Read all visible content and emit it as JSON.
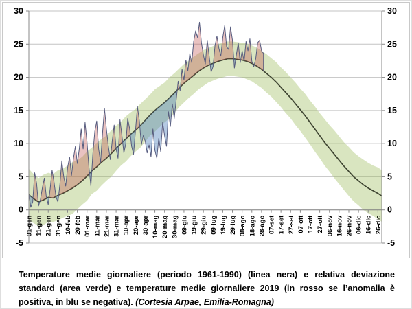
{
  "caption": {
    "main": "Temperature medie giornaliere (periodo 1961-1990) (linea nera) e relativa deviazione standard (area verde) e temperature medie giornaliere 2019 (in rosso se l’anomalia è positiva, in blu se negativa). ",
    "credit": "(Cortesia Arpae, Emilia-Romagna)"
  },
  "chart_data": {
    "type": "line",
    "title": "",
    "xlabel": "",
    "ylabel": "",
    "ylim": [
      -5,
      30
    ],
    "y_tick_step": 5,
    "y_axis_sides": [
      "left",
      "right"
    ],
    "x_axis_crosses_at": 0,
    "days_in_year": 365,
    "grid": {
      "show": true,
      "color": "#c3c3c3",
      "axis_color": "#8a8a8a",
      "zero_axis_color": "#7f7f7f"
    },
    "x_tick_first_day": 1,
    "x_tick_interval_days": 10,
    "x_tick_labels": [
      "01-gen",
      "11-gen",
      "21-gen",
      "31-gen",
      "10-feb",
      "20-feb",
      "01-mar",
      "11-mar",
      "21-mar",
      "31-mar",
      "10-apr",
      "20-apr",
      "30-apr",
      "10-mag",
      "20-mag",
      "30-mag",
      "09-giu",
      "19-giu",
      "29-giu",
      "09-lug",
      "19-lug",
      "29-lug",
      "08-ago",
      "18-ago",
      "28-ago",
      "07-set",
      "17-set",
      "27-set",
      "07-ott",
      "17-ott",
      "27-ott",
      "06-nov",
      "16-nov",
      "26-nov",
      "06-dic",
      "16-dic",
      "26-dic"
    ],
    "series": [
      {
        "name": "media giornaliera 1961-1990 (linea nera)",
        "role": "climatology-mean",
        "line_color": "#3e4431",
        "line_width": 1.7,
        "sampling": {
          "start_day": 1,
          "step_days": 5
        },
        "values": [
          2.3,
          1.7,
          1.2,
          1.5,
          1.9,
          1.8,
          2.2,
          2.5,
          2.9,
          3.3,
          3.8,
          4.4,
          5.1,
          5.9,
          6.5,
          7.2,
          7.8,
          8.5,
          9.3,
          10.0,
          10.7,
          11.4,
          12.0,
          12.7,
          13.5,
          14.3,
          15.0,
          15.6,
          16.2,
          16.9,
          17.6,
          18.4,
          19.1,
          19.7,
          20.3,
          20.9,
          21.4,
          21.8,
          22.1,
          22.4,
          22.6,
          22.8,
          22.8,
          22.7,
          22.6,
          22.4,
          22.1,
          21.7,
          21.2,
          20.6,
          20.0,
          19.3,
          18.5,
          17.7,
          16.9,
          16.0,
          15.1,
          14.2,
          13.2,
          12.2,
          11.2,
          10.2,
          9.3,
          8.4,
          7.5,
          6.6,
          5.8,
          5.0,
          4.4,
          3.8,
          3.3,
          2.9,
          2.5,
          2.1
        ]
      },
      {
        "name": "deviazione standard 1961-1990 (area verde)",
        "role": "std-band",
        "fill_color": "#9bbb59",
        "fill_opacity": 0.38,
        "sampling": {
          "start_day": 1,
          "step_days": 5
        },
        "half_width_values": [
          3.9,
          3.7,
          3.6,
          3.8,
          3.7,
          3.6,
          3.8,
          3.7,
          3.8,
          3.9,
          3.7,
          3.6,
          3.7,
          3.5,
          3.6,
          3.5,
          3.4,
          3.5,
          3.4,
          3.3,
          3.4,
          3.3,
          3.2,
          3.3,
          3.2,
          3.1,
          3.2,
          3.1,
          3.0,
          3.1,
          3.0,
          2.9,
          2.9,
          2.8,
          2.8,
          2.7,
          2.7,
          2.6,
          2.6,
          2.6,
          2.6,
          2.6,
          2.6,
          2.6,
          2.6,
          2.7,
          2.7,
          2.8,
          2.8,
          2.9,
          2.9,
          3.0,
          3.0,
          3.1,
          3.1,
          3.2,
          3.2,
          3.3,
          3.3,
          3.4,
          3.4,
          3.5,
          3.5,
          3.6,
          3.6,
          3.6,
          3.7,
          3.7,
          3.7,
          3.8,
          3.8,
          3.8,
          3.9,
          3.9
        ]
      },
      {
        "name": "media giornaliera 2019 (rosso = anomalia positiva, blu = anomalia negativa)",
        "role": "observed-2019",
        "line_color": "#565b7e",
        "line_width": 1,
        "positive_fill": "#c0504d",
        "positive_opacity": 0.35,
        "negative_fill": "#4f81bd",
        "negative_opacity": 0.42,
        "sampling": {
          "start_day": 1,
          "step_days": 2
        },
        "values": [
          2.4,
          0.4,
          1.2,
          5.6,
          4.0,
          0.6,
          1.6,
          3.4,
          4.8,
          2.0,
          0.8,
          3.2,
          6.0,
          4.2,
          2.0,
          1.2,
          3.8,
          7.4,
          5.0,
          3.6,
          6.4,
          8.0,
          5.2,
          7.8,
          9.6,
          7.0,
          9.2,
          12.2,
          9.2,
          13.2,
          10.2,
          6.4,
          3.6,
          8.4,
          11.8,
          13.4,
          9.2,
          7.2,
          11.6,
          15.3,
          12.2,
          9.6,
          7.6,
          10.4,
          12.8,
          9.2,
          7.8,
          13.6,
          11.2,
          8.6,
          10.0,
          13.8,
          12.2,
          9.6,
          8.4,
          12.0,
          15.6,
          13.4,
          9.8,
          11.2,
          10.4,
          8.6,
          9.8,
          8.0,
          12.2,
          9.0,
          7.8,
          10.8,
          8.8,
          13.2,
          11.2,
          9.6,
          14.8,
          12.6,
          16.0,
          13.8,
          16.6,
          19.4,
          18.0,
          21.2,
          19.6,
          22.6,
          21.0,
          23.6,
          22.2,
          25.4,
          27.0,
          26.0,
          28.3,
          25.2,
          23.4,
          22.0,
          25.6,
          23.2,
          20.8,
          21.6,
          24.8,
          26.2,
          24.4,
          23.2,
          26.0,
          27.8,
          24.6,
          24.2,
          27.6,
          25.6,
          21.4,
          23.4,
          25.2,
          22.2,
          24.0,
          22.4,
          25.4,
          24.0,
          25.8,
          22.4,
          21.6,
          22.8,
          25.2,
          25.6,
          24.0,
          23.6
        ]
      }
    ]
  }
}
